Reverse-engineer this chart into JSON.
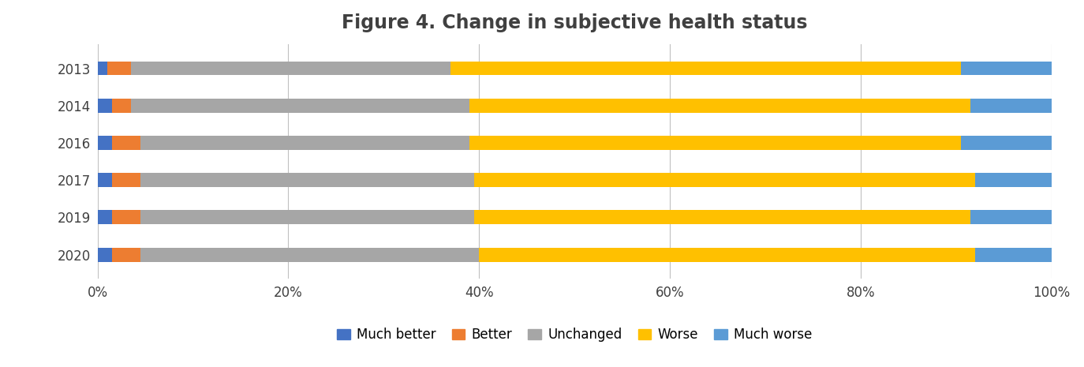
{
  "title": "Figure 4. Change in subjective health status",
  "years": [
    "2013",
    "2014",
    "2016",
    "2017",
    "2019",
    "2020"
  ],
  "categories": [
    "Much better",
    "Better",
    "Unchanged",
    "Worse",
    "Much worse"
  ],
  "colors": [
    "#4472C4",
    "#ED7D31",
    "#A6A6A6",
    "#FFC000",
    "#5B9BD5"
  ],
  "values": {
    "Much better": [
      1.0,
      1.5,
      1.5,
      1.5,
      1.5,
      1.5
    ],
    "Better": [
      2.5,
      2.0,
      3.0,
      3.0,
      3.0,
      3.0
    ],
    "Unchanged": [
      33.5,
      35.5,
      34.5,
      35.0,
      35.0,
      35.5
    ],
    "Worse": [
      53.5,
      52.5,
      51.5,
      52.5,
      52.0,
      52.0
    ],
    "Much worse": [
      9.5,
      8.5,
      9.5,
      8.0,
      8.5,
      8.0
    ]
  },
  "xlim": [
    0,
    100
  ],
  "xticks": [
    0,
    20,
    40,
    60,
    80,
    100
  ],
  "xticklabels": [
    "0%",
    "20%",
    "40%",
    "60%",
    "80%",
    "100%"
  ],
  "background_color": "#FFFFFF",
  "title_fontsize": 17,
  "tick_fontsize": 12,
  "legend_fontsize": 12,
  "bar_height": 0.38,
  "title_color": "#404040",
  "grid_color": "#C0C0C0"
}
